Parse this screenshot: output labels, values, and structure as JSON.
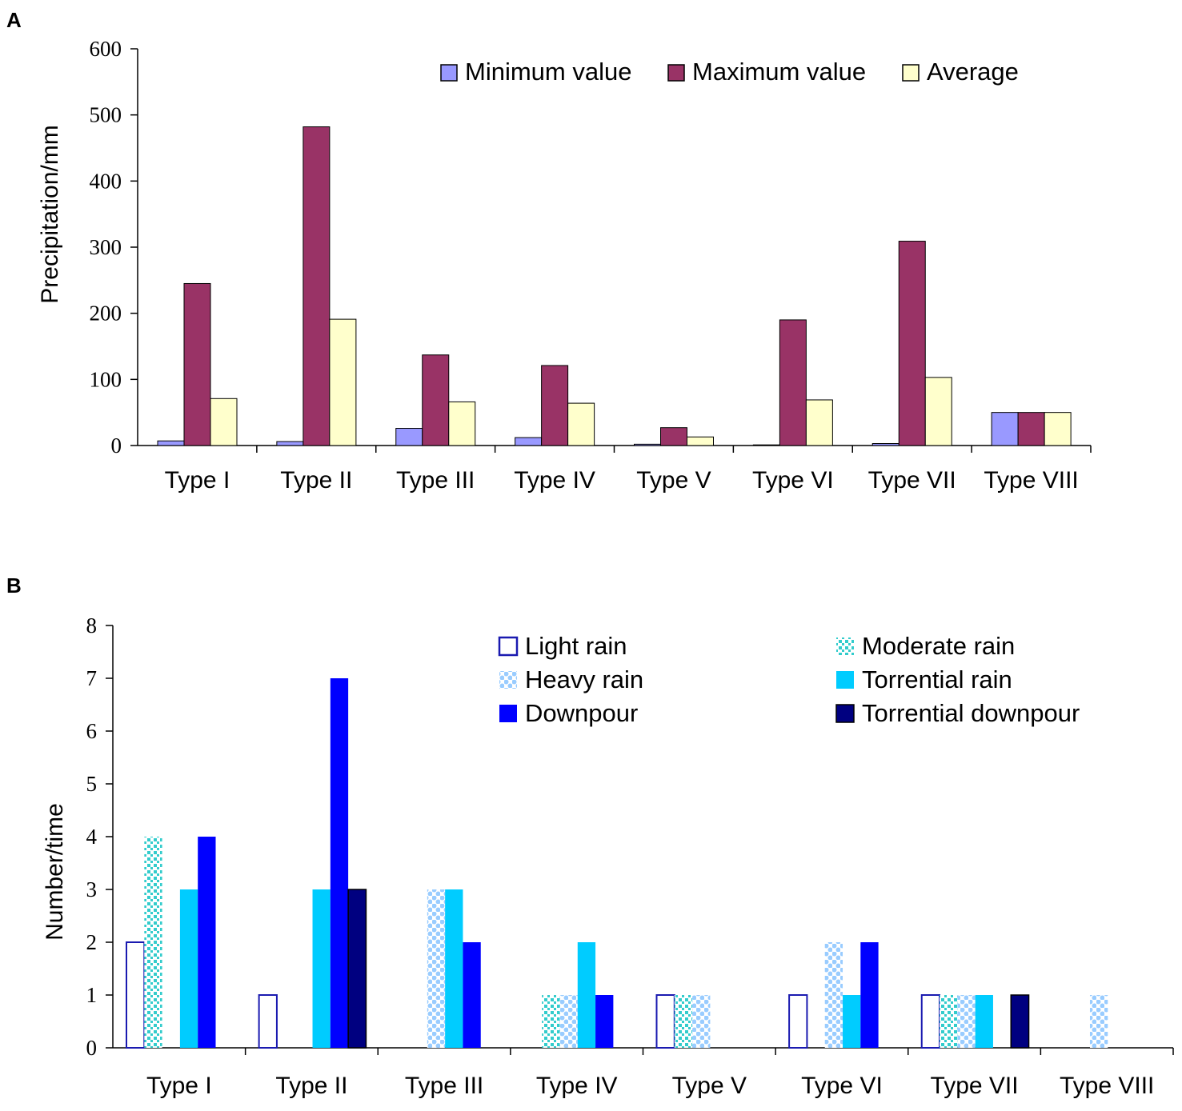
{
  "chart_data": [
    {
      "panel": "A",
      "type": "bar",
      "title": "",
      "xlabel": "",
      "ylabel": "Precipitation/mm",
      "ylim": [
        0,
        600
      ],
      "yticks": [
        "0",
        "100",
        "200",
        "300",
        "400",
        "500",
        "600"
      ],
      "categories": [
        "Type I",
        "Type II",
        "Type III",
        "Type IV",
        "Type V",
        "Type VI",
        "Type VII",
        "Type VIII"
      ],
      "series": [
        {
          "name": "Minimum value",
          "color": "#9999FF",
          "values": [
            7,
            6,
            26,
            12,
            2,
            1,
            3,
            50
          ]
        },
        {
          "name": "Maximum value",
          "color": "#993366",
          "values": [
            245,
            482,
            137,
            121,
            27,
            190,
            309,
            50
          ]
        },
        {
          "name": "Average",
          "color": "#FFFFCC",
          "values": [
            71,
            191,
            66,
            64,
            13,
            69,
            103,
            50
          ]
        }
      ],
      "legend": "top-right"
    },
    {
      "panel": "B",
      "type": "bar",
      "title": "",
      "xlabel": "",
      "ylabel": "Number/time",
      "ylim": [
        0,
        8
      ],
      "yticks": [
        "0",
        "1",
        "2",
        "3",
        "4",
        "5",
        "6",
        "7",
        "8"
      ],
      "categories": [
        "Type I",
        "Type II",
        "Type III",
        "Type IV",
        "Type V",
        "Type VI",
        "Type VII",
        "Type VIII"
      ],
      "series": [
        {
          "name": "Light rain",
          "color": "#1A1AB0",
          "pattern": "outline",
          "values": [
            2,
            1,
            0,
            0,
            1,
            1,
            1,
            0
          ]
        },
        {
          "name": "Moderate rain",
          "color": "#33CCCC",
          "pattern": "dots",
          "values": [
            4,
            0,
            0,
            1,
            1,
            0,
            1,
            0
          ]
        },
        {
          "name": "Heavy rain",
          "color": "#99CCFF",
          "pattern": "checker",
          "values": [
            0,
            0,
            3,
            1,
            1,
            2,
            1,
            1
          ]
        },
        {
          "name": "Torrential rain",
          "color": "#00CCFF",
          "pattern": "solid",
          "values": [
            3,
            3,
            3,
            2,
            0,
            1,
            1,
            0
          ]
        },
        {
          "name": "Downpour",
          "color": "#0000FF",
          "pattern": "solid",
          "values": [
            4,
            7,
            2,
            1,
            0,
            2,
            0,
            0
          ]
        },
        {
          "name": "Torrential downpour",
          "color": "#000080",
          "pattern": "solid",
          "values": [
            0,
            3,
            0,
            0,
            0,
            0,
            1,
            0
          ]
        }
      ],
      "legend": "top-right"
    }
  ]
}
